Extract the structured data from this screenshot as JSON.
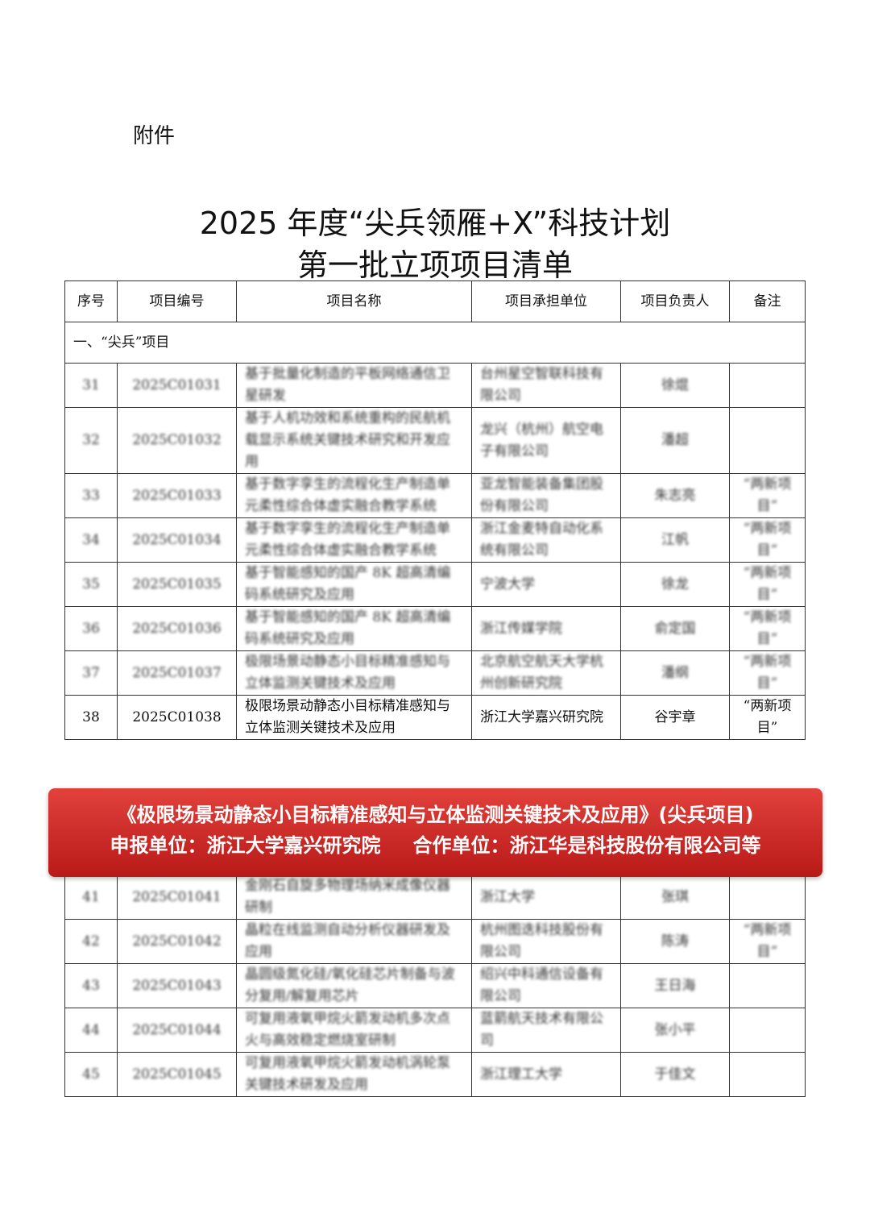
{
  "header": {
    "label": "附件",
    "title_line1": "2025 年度“尖兵领雁+X”科技计划",
    "title_line2": "第一批立项项目清单"
  },
  "table": {
    "columns": [
      "序号",
      "项目编号",
      "项目名称",
      "项目承担单位",
      "项目负责人",
      "备注"
    ],
    "section": "一、“尖兵”项目",
    "rows": [
      [
        "31",
        "2025C01031",
        "基于批量化制造的平板网络通信卫星研发",
        "台州星空智联科技有限公司",
        "徐焜"
      ],
      [
        "32",
        "2025C01032",
        "基于人机功效和系统重构的民航机载显示系统关键技术研究和开发应用",
        "龙兴（杭州）航空电子有限公司",
        "潘超"
      ],
      [
        "33",
        "2025C01033",
        "基于数字孪生的流程化生产制造单元柔性综合体虚实融合教学系统",
        "亚龙智能装备集团股份有限公司",
        "朱志亮",
        "“两新项目”"
      ],
      [
        "34",
        "2025C01034",
        "基于数字孪生的流程化生产制造单元柔性综合体虚实融合教学系统",
        "浙江金麦特自动化系统有限公司",
        "江帆",
        "“两新项目”"
      ],
      [
        "35",
        "2025C01035",
        "基于智能感知的国产 8K 超高清编码系统研究及应用",
        "宁波大学",
        "徐龙",
        "“两新项目”"
      ],
      [
        "36",
        "2025C01036",
        "基于智能感知的国产 8K 超高清编码系统研究及应用",
        "浙江传媒学院",
        "俞定国",
        "“两新项目”"
      ],
      [
        "37",
        "2025C01037",
        "极限场景动静态小目标精准感知与立体监测关键技术及应用",
        "北京航空航天大学杭州创新研究院",
        "潘纲",
        "“两新项目”"
      ],
      [
        "38",
        "2025C01038",
        "极限场景动静态小目标精准感知与立体监测关键技术及应用",
        "浙江大学嘉兴研究院",
        "谷宇章",
        "“两新项目”"
      ]
    ],
    "continued_rows": [
      [
        "41",
        "2025C01041",
        "金刚石自旋多物理场纳米成像仪器研制",
        "浙江大学",
        "张琪"
      ],
      [
        "42",
        "2025C01042",
        "晶粒在线监测自动分析仪器研发及应用",
        "杭州图迭科技股份有限公司",
        "陈涛",
        "“两新项目”"
      ],
      [
        "43",
        "2025C01043",
        "晶圆级氮化硅/氧化硅芯片制备与波分复用/解复用芯片",
        "绍兴中科通信设备有限公司",
        "王日海"
      ],
      [
        "44",
        "2025C01044",
        "可复用液氧甲烷火箭发动机多次点火与高效稳定燃烧室研制",
        "蓝箭航天技术有限公司",
        "张小平"
      ],
      [
        "45",
        "2025C01045",
        "可复用液氧甲烷火箭发动机涡轮泵关键技术研发及应用",
        "浙江理工大学",
        "于佳文"
      ]
    ]
  },
  "banner": {
    "line1": "《极限场景动静态小目标精准感知与立体监测关键技术及应用》(尖兵项目)",
    "applicant": "申报单位：浙江大学嘉兴研究院",
    "partner": "合作单位：浙江华是科技股份有限公司等"
  }
}
